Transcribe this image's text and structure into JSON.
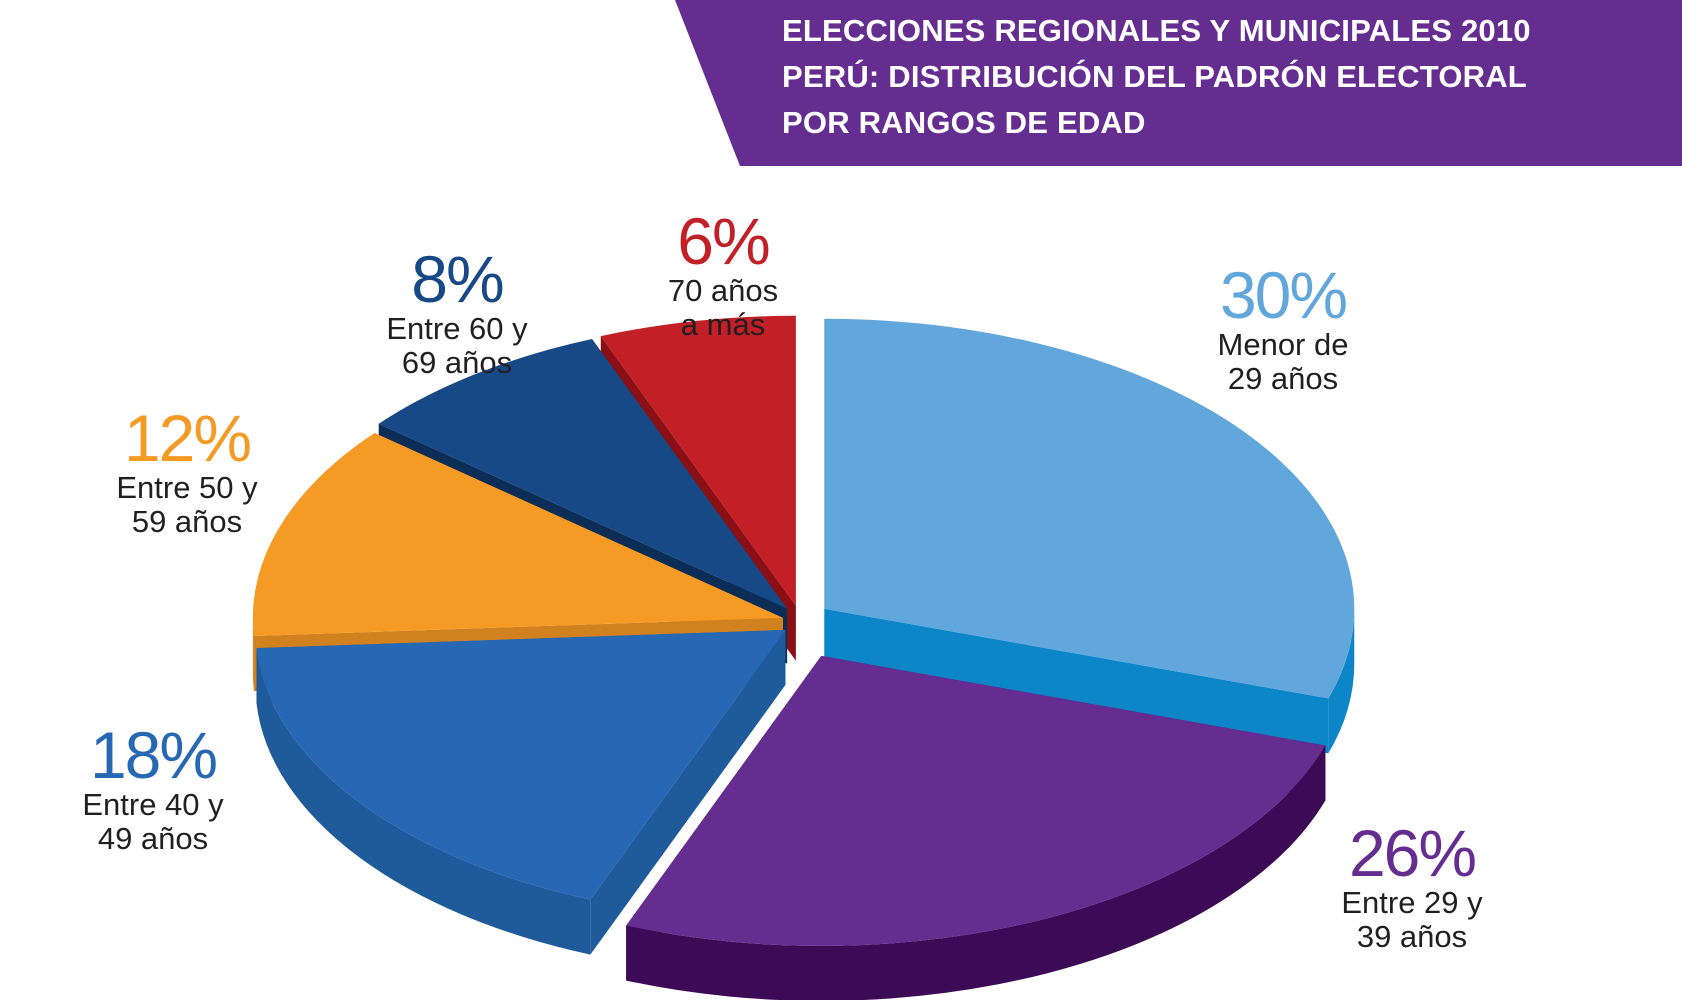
{
  "header": {
    "title_lines": [
      "ELECCIONES REGIONALES Y MUNICIPALES 2010",
      "PERÚ:  DISTRIBUCIÓN  DEL  PADRÓN  ELECTORAL",
      "POR RANGOS DE EDAD"
    ],
    "banner_color": "#662d91"
  },
  "chart_data": {
    "type": "pie",
    "title": "ELECCIONES REGIONALES Y MUNICIPALES 2010 PERÚ: DISTRIBUCIÓN DEL PADRÓN ELECTORAL POR RANGOS DE EDAD",
    "unit": "%",
    "slices": [
      {
        "value": 30,
        "pct_label": "30%",
        "line1": "Menor de",
        "line2": "29 años",
        "color": "#62a7dc",
        "side_color": "#0d86c9"
      },
      {
        "value": 26,
        "pct_label": "26%",
        "line1": "Entre 29 y",
        "line2": "39 años",
        "color": "#662d91",
        "side_color": "#3d0a55"
      },
      {
        "value": 18,
        "pct_label": "18%",
        "line1": "Entre 40 y",
        "line2": "49 años",
        "color": "#2668b4",
        "side_color": "#1f5b9b"
      },
      {
        "value": 12,
        "pct_label": "12%",
        "line1": "Entre 50 y",
        "line2": "59 años",
        "color": "#f59b25",
        "side_color": "#d1821e"
      },
      {
        "value": 8,
        "pct_label": "8%",
        "line1": "Entre 60 y",
        "line2": "69 años",
        "color": "#164985",
        "side_color": "#0b2d56"
      },
      {
        "value": 6,
        "pct_label": "6%",
        "line1": "70 años",
        "line2": "a más",
        "color": "#c21f26",
        "side_color": "#8a1015"
      }
    ],
    "label_colors": [
      "#62a7dc",
      "#662d91",
      "#2668b4",
      "#f59b25",
      "#164985",
      "#c21f26"
    ]
  }
}
